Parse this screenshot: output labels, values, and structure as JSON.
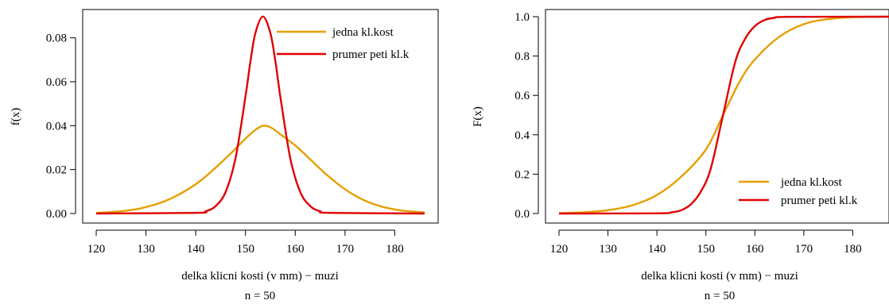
{
  "chart_data": [
    {
      "type": "line",
      "title": "",
      "xlabel": "delka klicni kosti (v mm) − muzi",
      "subtitle": "n = 50",
      "ylabel": "f(x)",
      "xlim": [
        120,
        186
      ],
      "ylim": [
        0,
        0.09
      ],
      "xticks": [
        120,
        130,
        140,
        150,
        160,
        170,
        180
      ],
      "yticks": [
        0.0,
        0.02,
        0.04,
        0.06,
        0.08
      ],
      "ytick_labels": [
        "0.00",
        "0.02",
        "0.04",
        "0.06",
        "0.08"
      ],
      "grid": false,
      "legend_position": "top-right",
      "series": [
        {
          "name": "jedna kl.kost",
          "color": "#e69f00",
          "x": [
            120,
            123,
            126,
            129,
            132,
            135,
            138,
            141,
            144,
            147,
            150,
            152,
            153.5,
            155,
            157,
            160,
            163,
            166,
            169,
            172,
            175,
            178,
            181,
            184,
            186
          ],
          "y": [
            0.0003,
            0.0007,
            0.0013,
            0.0024,
            0.0042,
            0.0068,
            0.0104,
            0.015,
            0.0209,
            0.0273,
            0.0341,
            0.0381,
            0.0399,
            0.0393,
            0.0361,
            0.031,
            0.0247,
            0.0183,
            0.0127,
            0.0082,
            0.0049,
            0.0028,
            0.0015,
            0.0008,
            0.0005
          ]
        },
        {
          "name": "prumer peti kl.k",
          "color": "#e00000",
          "x": [
            120,
            140,
            142,
            144,
            146,
            148,
            150,
            151,
            152,
            153.5,
            155,
            156,
            157,
            159,
            161,
            163,
            165,
            167,
            186
          ],
          "y": [
            0.0,
            0.0003,
            0.001,
            0.0034,
            0.0098,
            0.0252,
            0.0533,
            0.0694,
            0.0822,
            0.0897,
            0.0822,
            0.0694,
            0.0533,
            0.0252,
            0.0098,
            0.0034,
            0.001,
            0.0003,
            0.0
          ]
        }
      ]
    },
    {
      "type": "line",
      "title": "",
      "xlabel": "delka klicni kosti (v mm) − muzi",
      "subtitle": "n = 50",
      "ylabel": "F(x)",
      "xlim": [
        120,
        190
      ],
      "ylim": [
        0,
        1
      ],
      "xticks": [
        120,
        130,
        140,
        150,
        160,
        170,
        180
      ],
      "yticks": [
        0.0,
        0.2,
        0.4,
        0.6,
        0.8,
        1.0
      ],
      "ytick_labels": [
        "0.0",
        "0.2",
        "0.4",
        "0.6",
        "0.8",
        "1.0"
      ],
      "grid": false,
      "legend_position": "bottom-right",
      "series": [
        {
          "name": "jedna kl.kost",
          "color": "#e69f00",
          "x": [
            120,
            125,
            130,
            135,
            140,
            145,
            150,
            153.5,
            157,
            160,
            165,
            170,
            175,
            180,
            185,
            190
          ],
          "y": [
            0.002,
            0.006,
            0.017,
            0.042,
            0.094,
            0.188,
            0.325,
            0.5,
            0.675,
            0.782,
            0.898,
            0.962,
            0.988,
            0.997,
            0.999,
            1.0
          ]
        },
        {
          "name": "prumer peti kl.k",
          "color": "#e00000",
          "x": [
            120,
            140,
            143,
            145,
            147,
            149,
            151,
            153.5,
            156,
            158,
            160,
            162,
            164,
            167,
            190
          ],
          "y": [
            0.0,
            0.001,
            0.006,
            0.017,
            0.048,
            0.113,
            0.229,
            0.5,
            0.771,
            0.887,
            0.952,
            0.983,
            0.994,
            0.999,
            1.0
          ]
        }
      ]
    }
  ]
}
